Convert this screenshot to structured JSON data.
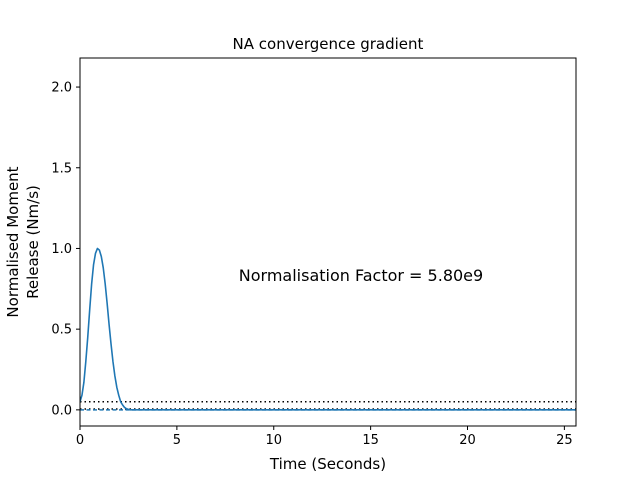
{
  "chart_data": {
    "type": "line",
    "title": "NA convergence gradient",
    "xlabel": "Time (Seconds)",
    "ylabel_lines": [
      "Normalised Moment",
      "Release (Nm/s)"
    ],
    "xlim": [
      0,
      25.6
    ],
    "ylim": [
      -0.1,
      2.18
    ],
    "xticks": [
      0,
      5,
      10,
      15,
      20,
      25
    ],
    "xtick_labels": [
      "0",
      "5",
      "10",
      "15",
      "20",
      "25"
    ],
    "yticks": [
      0.0,
      0.5,
      1.0,
      1.5,
      2.0
    ],
    "ytick_labels": [
      "0.0",
      "0.5",
      "1.0",
      "1.5",
      "2.0"
    ],
    "grid": false,
    "annotation": "Normalisation Factor = 5.80e9",
    "series": [
      {
        "color": "#1f77b4",
        "x": [
          0,
          0.1,
          0.2,
          0.3,
          0.4,
          0.5,
          0.6,
          0.7,
          0.8,
          0.9,
          1.0,
          1.1,
          1.2,
          1.3,
          1.4,
          1.5,
          1.6,
          1.7,
          1.8,
          1.9,
          2.0,
          2.1,
          2.2,
          2.3,
          2.4,
          2.5,
          2.6,
          2.7,
          2.8,
          3.0,
          25.6
        ],
        "y": [
          0.05,
          0.09,
          0.17,
          0.3,
          0.45,
          0.62,
          0.78,
          0.9,
          0.97,
          1.0,
          0.99,
          0.95,
          0.88,
          0.78,
          0.66,
          0.53,
          0.41,
          0.3,
          0.21,
          0.14,
          0.09,
          0.05,
          0.03,
          0.015,
          0.007,
          0.003,
          0.0,
          0.0,
          0.0,
          0.0,
          0.0
        ]
      }
    ],
    "reference_lines": [
      {
        "y": 0.05,
        "style": "dotted",
        "color": "#000000"
      },
      {
        "y": 0.005,
        "style": "dotted",
        "color": "#000000"
      },
      {
        "y": 0.0,
        "style": "dashed",
        "color": "#1f77b4"
      }
    ]
  }
}
